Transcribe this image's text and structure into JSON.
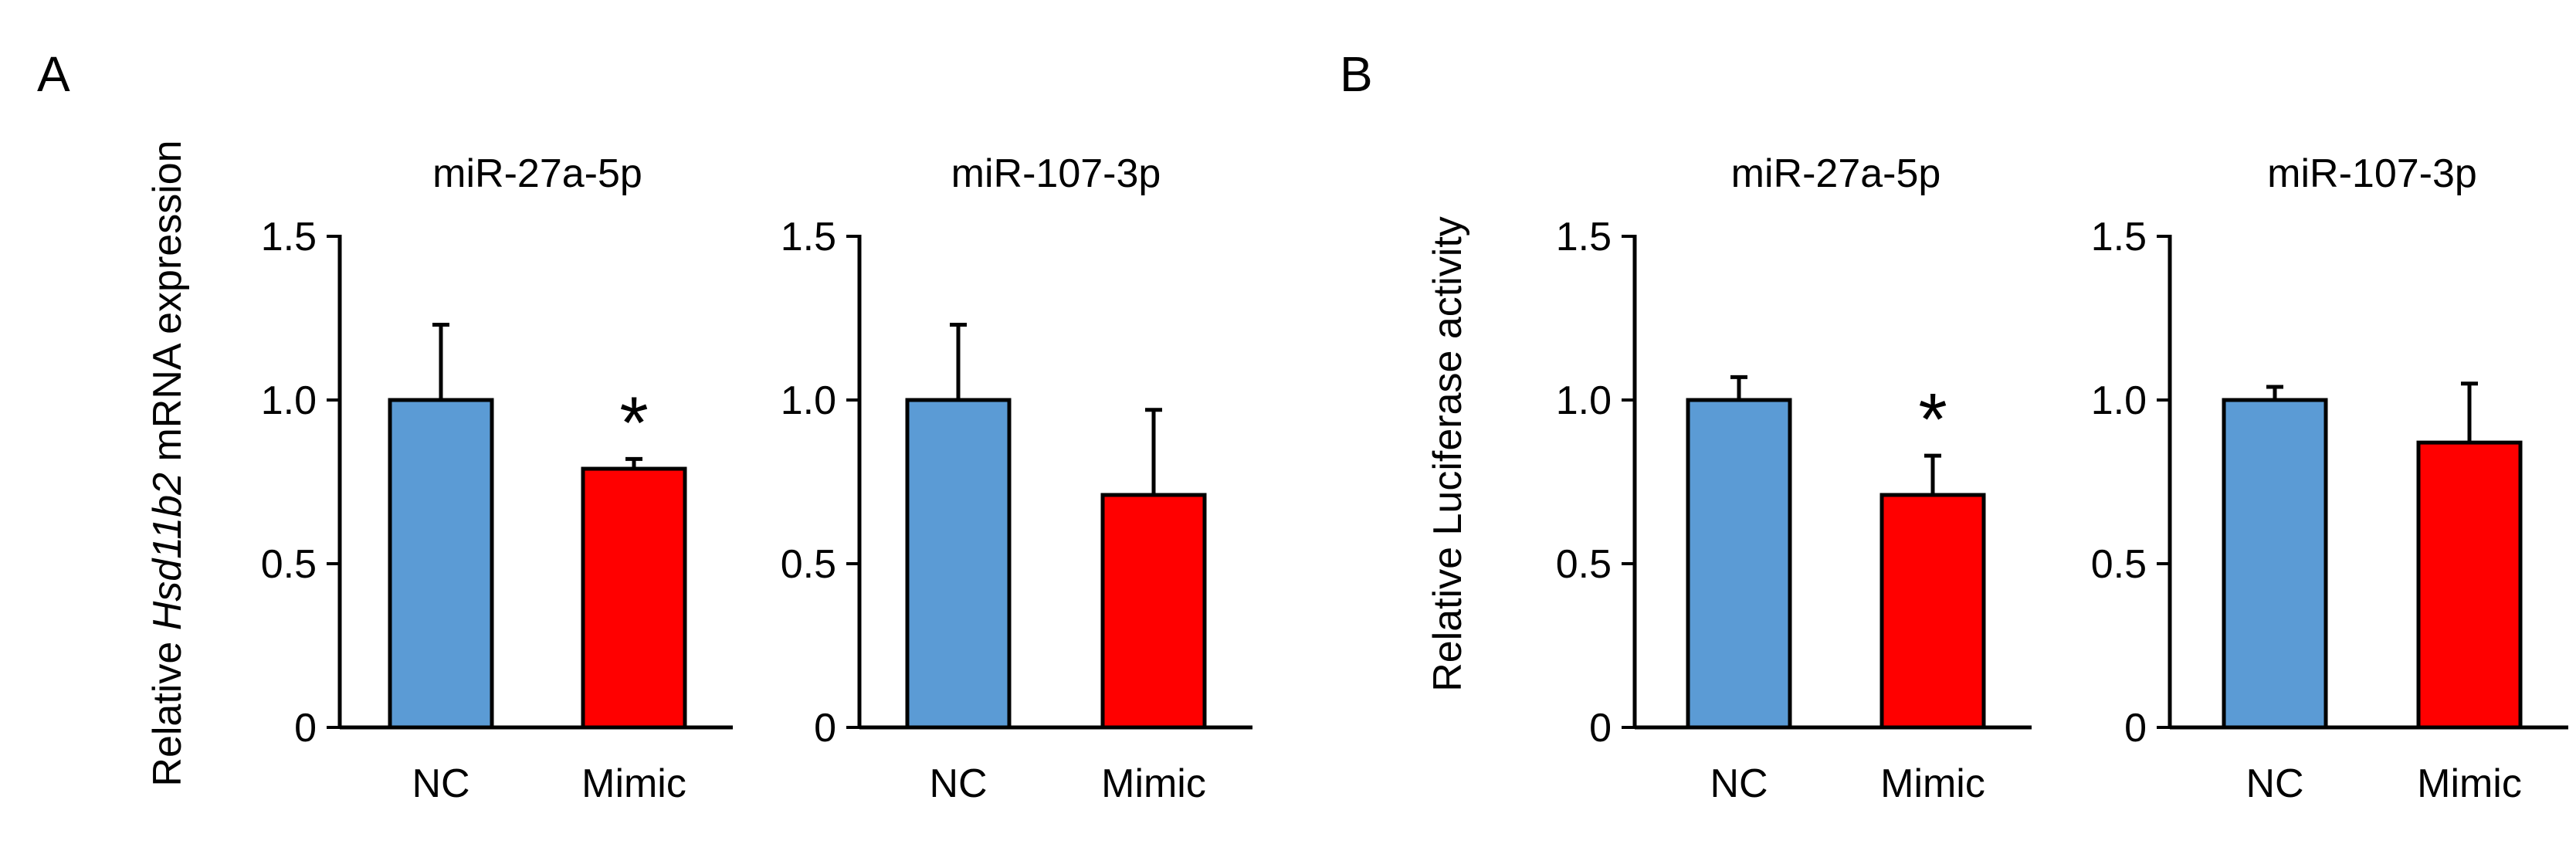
{
  "panel_labels": [
    "A",
    "B"
  ],
  "y_labels": {
    "A": {
      "prefix": "Relative ",
      "gene": "Hsd11b2",
      "suffix": " mRNA expression"
    },
    "B": "Relative Luciferase activity"
  },
  "colors": {
    "nc": "#5b9bd5",
    "mimic": "#ff0000",
    "axis": "#000000"
  },
  "chart_data": [
    {
      "type": "bar",
      "panel": "A",
      "title": "miR-27a-5p",
      "categories": [
        "NC",
        "Mimic"
      ],
      "values": [
        1.0,
        0.79
      ],
      "errors": [
        0.23,
        0.03
      ],
      "significance": [
        "",
        "*"
      ],
      "ylim": [
        0,
        1.5
      ],
      "yticks": [
        0,
        0.5,
        1.0,
        1.5
      ],
      "ytick_labels": [
        "0",
        "0.5",
        "1.0",
        "1.5"
      ]
    },
    {
      "type": "bar",
      "panel": "A",
      "title": "miR-107-3p",
      "categories": [
        "NC",
        "Mimic"
      ],
      "values": [
        1.0,
        0.71
      ],
      "errors": [
        0.23,
        0.26
      ],
      "significance": [
        "",
        ""
      ],
      "ylim": [
        0,
        1.5
      ],
      "yticks": [
        0,
        0.5,
        1.0,
        1.5
      ],
      "ytick_labels": [
        "0",
        "0.5",
        "1.0",
        "1.5"
      ]
    },
    {
      "type": "bar",
      "panel": "B",
      "title": "miR-27a-5p",
      "categories": [
        "NC",
        "Mimic"
      ],
      "values": [
        1.0,
        0.71
      ],
      "errors": [
        0.07,
        0.12
      ],
      "significance": [
        "",
        "*"
      ],
      "ylim": [
        0,
        1.5
      ],
      "yticks": [
        0,
        0.5,
        1.0,
        1.5
      ],
      "ytick_labels": [
        "0",
        "0.5",
        "1.0",
        "1.5"
      ]
    },
    {
      "type": "bar",
      "panel": "B",
      "title": "miR-107-3p",
      "categories": [
        "NC",
        "Mimic"
      ],
      "values": [
        1.0,
        0.87
      ],
      "errors": [
        0.04,
        0.18
      ],
      "significance": [
        "",
        ""
      ],
      "ylim": [
        0,
        1.5
      ],
      "yticks": [
        0,
        0.5,
        1.0,
        1.5
      ],
      "ytick_labels": [
        "0",
        "0.5",
        "1.0",
        "1.5"
      ]
    }
  ]
}
